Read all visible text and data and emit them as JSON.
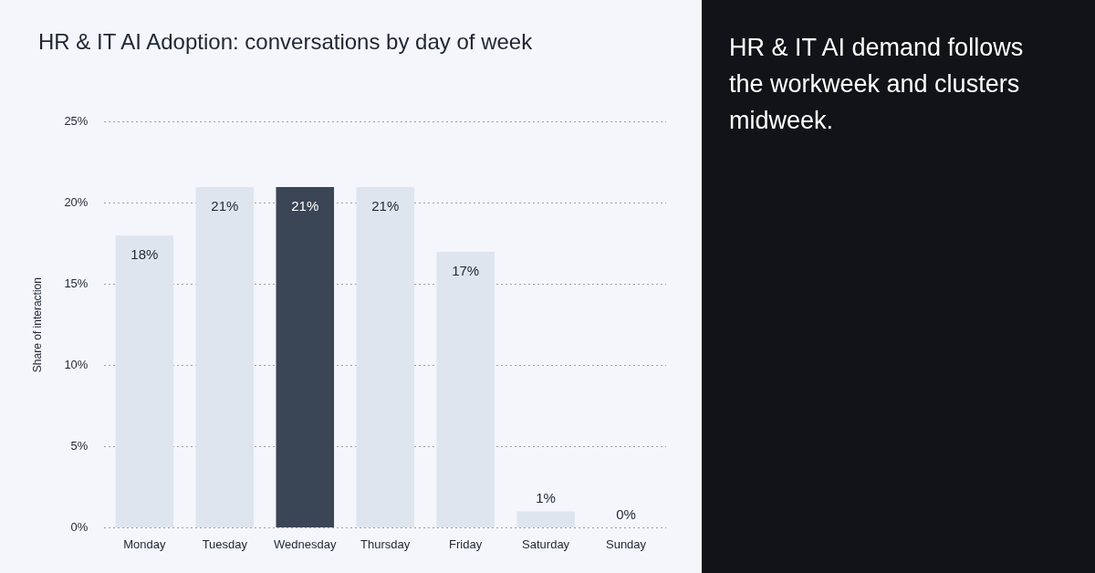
{
  "chart_data": {
    "type": "bar",
    "title": "HR & IT AI Adoption: conversations by day of week",
    "annotations": [
      "HR & IT AI demand follows the workweek and clusters midweek."
    ],
    "ylabel": "Share of interaction",
    "categories": [
      "Monday",
      "Tuesday",
      "Wednesday",
      "Thursday",
      "Friday",
      "Saturday",
      "Sunday"
    ],
    "values": [
      18,
      21,
      21,
      21,
      17,
      1,
      0
    ],
    "value_labels": [
      "18%",
      "21%",
      "21%",
      "21%",
      "17%",
      "1%",
      "0%"
    ],
    "colors": [
      "#dfe5ee",
      "#dfe5ee",
      "#3a4556",
      "#dfe5ee",
      "#dfe5ee",
      "#dfe5ee",
      "#dfe5ee"
    ],
    "ylim": [
      0,
      25
    ],
    "yticks": [
      {
        "value": 0,
        "label": "0%"
      },
      {
        "value": 5,
        "label": "5%"
      },
      {
        "value": 10,
        "label": "10%"
      },
      {
        "value": 15,
        "label": "15%"
      },
      {
        "value": 20,
        "label": "20%"
      },
      {
        "value": 25,
        "label": "25%"
      }
    ],
    "grid": "y",
    "legend": false
  }
}
